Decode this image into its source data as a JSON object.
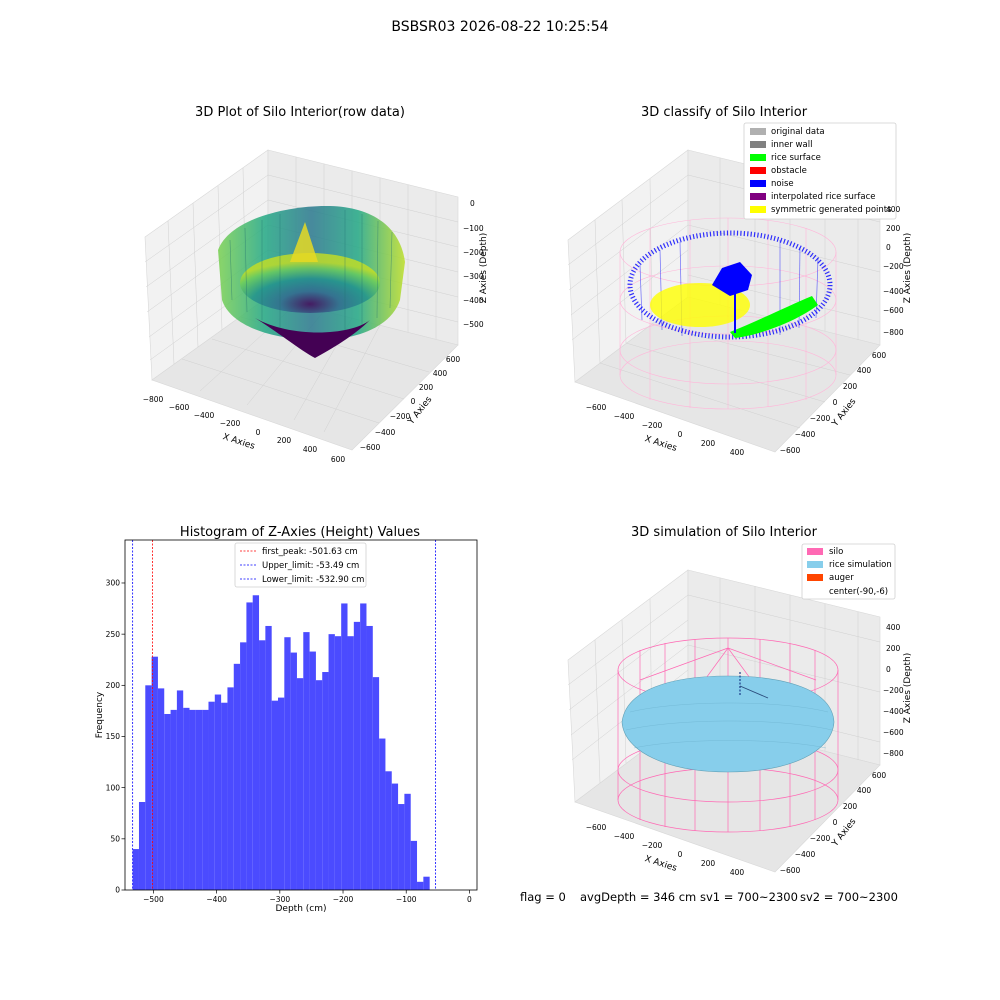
{
  "figure": {
    "suptitle": "BSBSR03 2026-08-22 10:25:54",
    "status": {
      "flag": "flag = 0",
      "avg_depth": "avgDepth = 346 cm",
      "sv1": "sv1 = 700~2300",
      "sv2": "sv2 = 700~2300"
    }
  },
  "colors": {
    "hist_bar": "#4b4bff",
    "first_peak_line": "#ff0000",
    "limit_lines": "#0000ff",
    "silo_mesh": "#ff69b4",
    "rice_simulation": "#87ceeb",
    "auger": "#ff4500",
    "noise": "#0000ff",
    "rice_surface": "#00ff00",
    "symmetric_points": "#ffff00"
  },
  "chart_data": [
    {
      "type": "scatter3d",
      "title": "3D Plot of Silo Interior(row data)",
      "xlabel": "X Axies",
      "ylabel": "Y Axies",
      "zlabel": "Z Axies (Depth)",
      "xticks": [
        "−800",
        "−600",
        "−400",
        "−200",
        "0",
        "200",
        "400",
        "600"
      ],
      "yticks": [
        "−600",
        "−400",
        "−200",
        "0",
        "200",
        "400",
        "600"
      ],
      "zticks": [
        "0",
        "−100",
        "−200",
        "−300",
        "−400",
        "−500"
      ],
      "colormap": "viridis"
    },
    {
      "type": "scatter3d",
      "title": "3D classify of Silo Interior",
      "xlabel": "X Axies",
      "ylabel": "Y Axies",
      "zlabel": "Z Axies (Depth)",
      "xticks": [
        "−600",
        "−400",
        "−200",
        "0",
        "200",
        "400"
      ],
      "yticks": [
        "−600",
        "−400",
        "−200",
        "0",
        "200",
        "400",
        "600"
      ],
      "zticks": [
        "400",
        "200",
        "0",
        "−200",
        "−400",
        "−600",
        "−800"
      ],
      "legend": [
        {
          "label": "original data",
          "color": "#b0b0b0"
        },
        {
          "label": "inner wall",
          "color": "#808080"
        },
        {
          "label": "rice surface",
          "color": "#00ff00"
        },
        {
          "label": "obstacle",
          "color": "#ff0000"
        },
        {
          "label": "noise",
          "color": "#0000ff"
        },
        {
          "label": "interpolated rice surface",
          "color": "#800080"
        },
        {
          "label": "symmetric generated points",
          "color": "#ffff00"
        }
      ]
    },
    {
      "type": "bar",
      "title": "Histogram of Z-Axies (Height) Values",
      "xlabel": "Depth (cm)",
      "ylabel": "Frequency",
      "xlim": [
        -545,
        12
      ],
      "ylim": [
        0,
        342
      ],
      "xticks": [
        -500,
        -400,
        -300,
        -200,
        -100,
        0
      ],
      "xtick_labels": [
        "−500",
        "−400",
        "−300",
        "−200",
        "−100",
        "0"
      ],
      "yticks": [
        0,
        50,
        100,
        150,
        200,
        250,
        300
      ],
      "yticks_labels": [
        "0",
        "50",
        "100",
        "150",
        "200",
        "250",
        "300"
      ],
      "bin_start": -532.9,
      "bin_width": 10.0,
      "values": [
        40,
        86,
        200,
        228,
        197,
        172,
        176,
        195,
        178,
        176,
        176,
        176,
        184,
        191,
        183,
        198,
        221,
        242,
        281,
        288,
        244,
        258,
        185,
        188,
        247,
        232,
        207,
        252,
        233,
        205,
        213,
        250,
        248,
        280,
        248,
        262,
        280,
        258,
        208,
        148,
        116,
        104,
        84,
        94,
        48,
        8,
        13
      ],
      "lines": [
        {
          "label": "first_peak: -501.63 cm",
          "x": -501.63,
          "color": "#ff0000"
        },
        {
          "label": "Upper_limit: -53.49 cm",
          "x": -53.49,
          "color": "#0000ff"
        },
        {
          "label": "Lower_limit: -532.90 cm",
          "x": -532.9,
          "color": "#0000ff"
        }
      ],
      "legend_position": "upper-center"
    },
    {
      "type": "surface3d",
      "title": "3D simulation of Silo Interior",
      "xlabel": "X Axies",
      "ylabel": "Y Axies",
      "zlabel": "Z Axies (Depth)",
      "xticks": [
        "−600",
        "−400",
        "−200",
        "0",
        "200",
        "400"
      ],
      "yticks": [
        "−600",
        "−400",
        "−200",
        "0",
        "200",
        "400",
        "600"
      ],
      "zticks": [
        "400",
        "200",
        "0",
        "−200",
        "−400",
        "−600",
        "−800"
      ],
      "legend": [
        {
          "label": "silo",
          "color": "#ff69b4"
        },
        {
          "label": "rice simulation",
          "color": "#87ceeb"
        },
        {
          "label": "auger",
          "color": "#ff4500"
        },
        {
          "label": "center(-90,-6)",
          "color": "#ffffff"
        }
      ]
    }
  ]
}
